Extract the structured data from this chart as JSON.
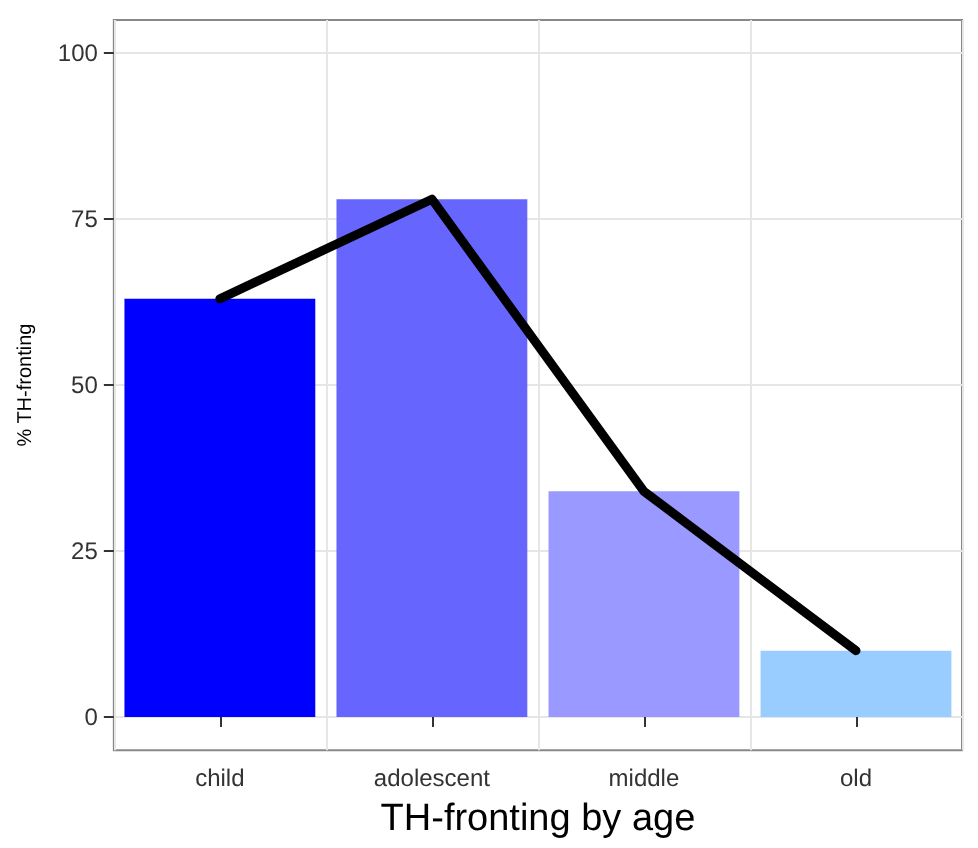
{
  "chart_data": {
    "type": "bar",
    "xlabel": "TH-fronting by age",
    "ylabel": "% TH-fronting",
    "categories": [
      "child",
      "adolescent",
      "middle",
      "old"
    ],
    "series": [
      {
        "colors": [
          "#0000ff",
          "#6666ff",
          "#9999ff",
          "#99ccff"
        ],
        "values": [
          63,
          78,
          34,
          10
        ]
      },
      {
        "type": "line",
        "color": "#000000",
        "values": [
          63,
          78,
          34,
          10
        ]
      }
    ],
    "ylim": [
      -5,
      105
    ],
    "yticks": [
      0,
      25,
      50,
      75,
      100
    ],
    "grid": true,
    "marker": "none",
    "line_style": "solid"
  }
}
